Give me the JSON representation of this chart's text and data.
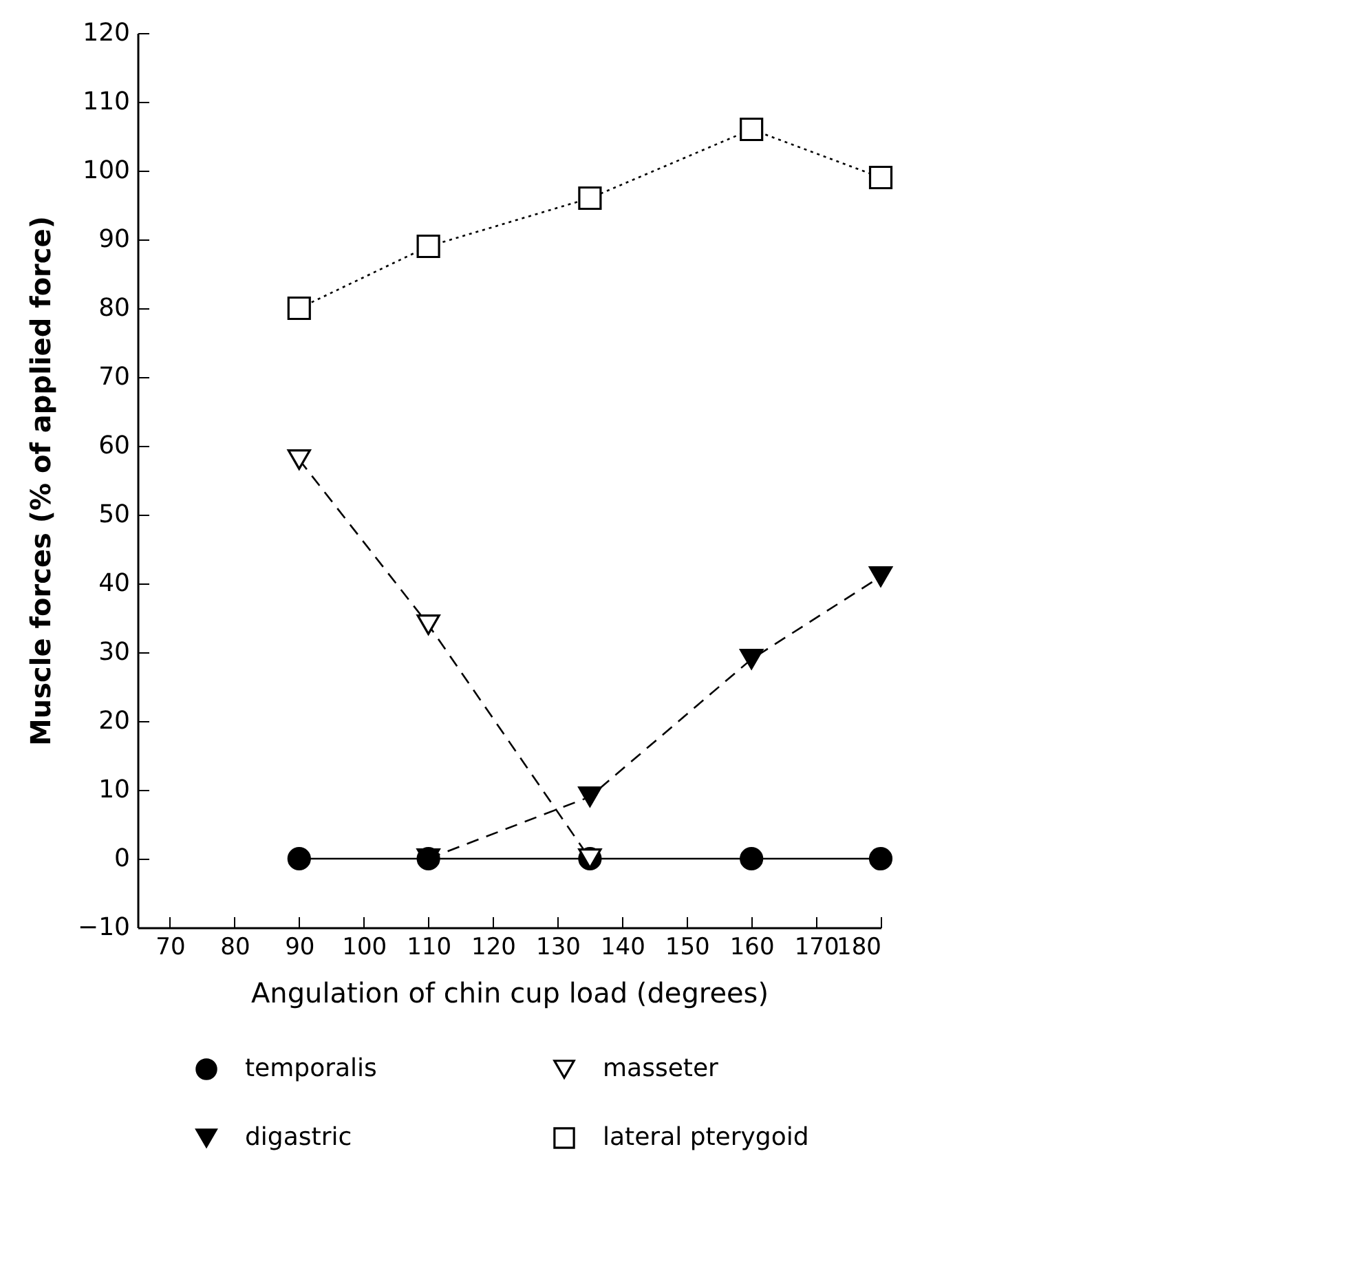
{
  "chart_data": {
    "type": "line",
    "xlabel": "Angulation of chin cup load (degrees)",
    "ylabel": "Muscle forces (% of applied force)",
    "x": [
      90,
      110,
      135,
      160,
      180
    ],
    "series": [
      {
        "name": "temporalis",
        "color": "#000000",
        "marker": "circle",
        "line_style": "solid",
        "values": [
          0,
          0,
          0,
          0,
          0
        ]
      },
      {
        "name": "masseter",
        "color": "#000000",
        "marker": "triangle-down-open",
        "line_style": "dashed",
        "values": [
          58,
          34,
          0,
          null,
          null
        ]
      },
      {
        "name": "digastric",
        "color": "#000000",
        "marker": "triangle-down",
        "line_style": "dashed",
        "values": [
          null,
          0,
          9,
          29,
          41
        ]
      },
      {
        "name": "lateral pterygoid",
        "color": "#000000",
        "marker": "square-open",
        "line_style": "dotted",
        "values": [
          80,
          89,
          96,
          106,
          99
        ]
      }
    ],
    "xlim": [
      65,
      180
    ],
    "xticks": [
      70,
      80,
      90,
      100,
      110,
      120,
      130,
      140,
      150,
      160,
      170,
      180
    ],
    "ylim": [
      -10,
      120
    ],
    "yticks": [
      -10,
      0,
      10,
      20,
      30,
      40,
      50,
      60,
      70,
      80,
      90,
      100,
      110,
      120
    ],
    "grid": false,
    "legend": "bottom"
  }
}
